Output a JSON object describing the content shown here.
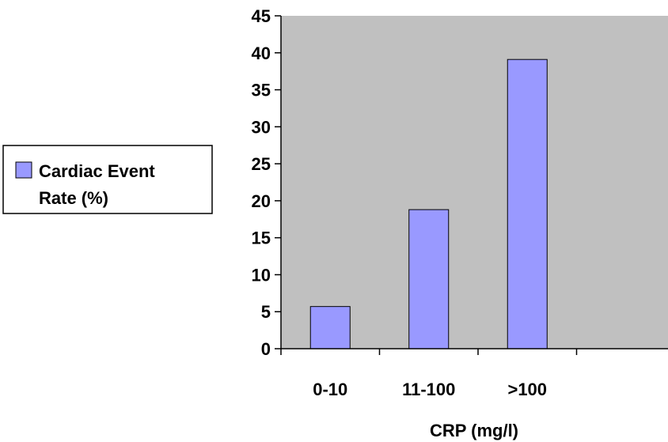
{
  "chart_data": {
    "type": "bar",
    "categories": [
      "0-10",
      "11-100",
      ">100"
    ],
    "series": [
      {
        "name": "Cardiac Event Rate (%)",
        "values": [
          5.7,
          18.8,
          39.1
        ]
      }
    ],
    "xlabel": "CRP (mg/l)",
    "ylabel": "",
    "ylim": [
      0,
      45
    ],
    "yticks": [
      0,
      5,
      10,
      15,
      20,
      25,
      30,
      35,
      40,
      45
    ],
    "legend": {
      "position": "left",
      "line1": "Cardiac Event",
      "line2": "Rate (%)"
    },
    "grid": false,
    "colors": {
      "bar": "#9999ff",
      "plot_bg": "#c0c0c0",
      "axis": "#000000"
    }
  }
}
